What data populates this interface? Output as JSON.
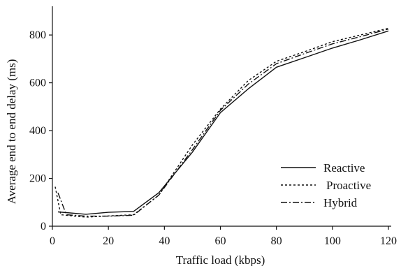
{
  "chart_data": {
    "type": "line",
    "title": "",
    "xlabel": "Traffic load (kbps)",
    "ylabel": "Average end to end delay (ms)",
    "xlim": [
      0,
      120
    ],
    "ylim": [
      0,
      850
    ],
    "xticks": [
      0,
      20,
      40,
      60,
      80,
      100,
      120
    ],
    "yticks": [
      0,
      200,
      400,
      600,
      800
    ],
    "xtick_labels": [
      "0",
      "20",
      "40",
      "60",
      "80",
      "100",
      "120"
    ],
    "ytick_labels": [
      "0",
      "200",
      "400",
      "600",
      "800"
    ],
    "grid": false,
    "legend_position": "lower-right",
    "series": [
      {
        "name": "Reactive",
        "style": "solid",
        "x": [
          2,
          12,
          20,
          29,
          38,
          50,
          60,
          70,
          80,
          90,
          100,
          110,
          120
        ],
        "y": [
          60,
          50,
          58,
          62,
          140,
          310,
          475,
          575,
          665,
          705,
          745,
          780,
          817
        ]
      },
      {
        "name": "Proactive",
        "style": "dotted",
        "x": [
          1,
          3,
          12,
          20,
          29,
          38,
          50,
          60,
          70,
          80,
          90,
          100,
          110,
          120
        ],
        "y": [
          165,
          48,
          38,
          43,
          48,
          130,
          340,
          490,
          610,
          690,
          730,
          772,
          800,
          828
        ]
      },
      {
        "name": "Hybrid",
        "style": "dashdot",
        "x": [
          2,
          5,
          12,
          20,
          29,
          38,
          50,
          60,
          70,
          80,
          90,
          100,
          110,
          120
        ],
        "y": [
          140,
          48,
          42,
          42,
          46,
          130,
          320,
          485,
          595,
          680,
          722,
          763,
          793,
          825
        ]
      }
    ]
  }
}
